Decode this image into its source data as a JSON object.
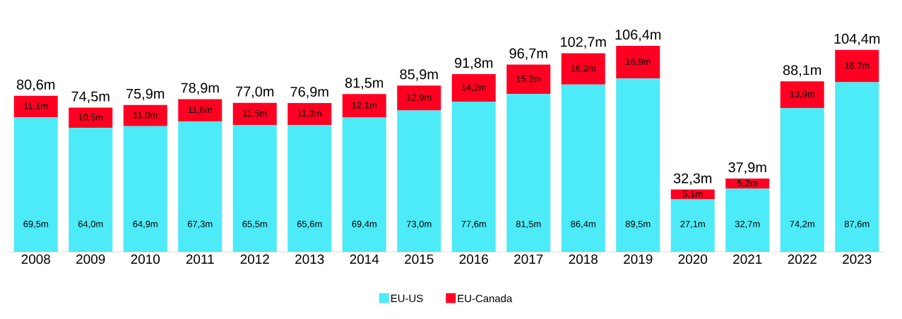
{
  "chart_data": {
    "type": "bar",
    "stacked": true,
    "legend": "bottom",
    "categories": [
      "2008",
      "2009",
      "2010",
      "2011",
      "2012",
      "2013",
      "2014",
      "2015",
      "2016",
      "2017",
      "2018",
      "2019",
      "2020",
      "2021",
      "2022",
      "2023"
    ],
    "series": [
      {
        "name": "EU-US",
        "color": "#4deaf7",
        "values": [
          69.5,
          64.0,
          64.9,
          67.3,
          65.5,
          65.6,
          69.4,
          73.0,
          77.6,
          81.5,
          86.4,
          89.5,
          27.1,
          32.7,
          74.2,
          87.6
        ],
        "value_labels": [
          "69,5m",
          "64,0m",
          "64,9m",
          "67,3m",
          "65,5m",
          "65,6m",
          "69,4m",
          "73,0m",
          "77,6m",
          "81,5m",
          "86,4m",
          "89,5m",
          "27,1m",
          "32,7m",
          "74,2m",
          "87,6m"
        ]
      },
      {
        "name": "EU-Canada",
        "color": "#ff0022",
        "values": [
          11.1,
          10.5,
          11.0,
          11.6,
          11.5,
          11.3,
          12.1,
          12.9,
          14.2,
          15.2,
          16.2,
          16.9,
          5.1,
          5.2,
          13.9,
          16.7
        ],
        "value_labels": [
          "11,1m",
          "10,5m",
          "11,0m",
          "11,6m",
          "11,5m",
          "11,3m",
          "12,1m",
          "12,9m",
          "14,2m",
          "15,2m",
          "16,2m",
          "16,9m",
          "5,1m",
          "5,2m",
          "13,9m",
          "16,7m"
        ]
      }
    ],
    "totals": [
      "80,6m",
      "74,5m",
      "75,9m",
      "78,9m",
      "77,0m",
      "76,9m",
      "81,5m",
      "85,9m",
      "91,8m",
      "96,7m",
      "102,7m",
      "106,4m",
      "32,3m",
      "37,9m",
      "88,1m",
      "104,4m"
    ]
  }
}
